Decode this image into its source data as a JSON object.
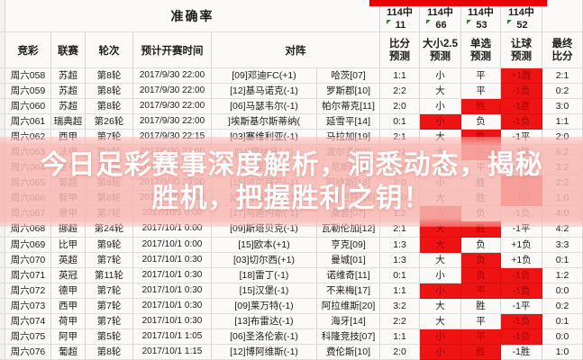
{
  "banner": {
    "line1": "今日足彩赛事深度解析，洞悉动态，揭秘",
    "line2": "胜机，把握胜利之钥！"
  },
  "header": {
    "accuracy_title": "准确率",
    "col_jingcai": "竞彩",
    "col_league": "联赛",
    "col_round": "轮次",
    "col_time": "预计开赛时间",
    "col_match": "对阵",
    "pred_cols": [
      {
        "hits": "114中",
        "count": "11",
        "label1": "比分",
        "label2": "预测"
      },
      {
        "hits": "114中",
        "count": "66",
        "label1": "大小2.5",
        "label2": "预测"
      },
      {
        "hits": "114中",
        "count": "53",
        "label1": "单选",
        "label2": "预测"
      },
      {
        "hits": "114中",
        "count": "52",
        "label1": "让球",
        "label2": "预测"
      }
    ],
    "final_col": {
      "label1": "最终",
      "label2": "比分"
    }
  },
  "colors": {
    "accent_red_bar": "#e60000",
    "hit_cell_red": "#ee1414",
    "hit_cell_text": "#9c0000",
    "overlay_pink": "#f9b7b1",
    "banner_text": "#ffffff",
    "comment_triangle_green": "#2f8a2f"
  },
  "rows": [
    {
      "id": "周六058",
      "lg": "苏超",
      "rd": "第8轮",
      "tm": "2017/9/30 22:00",
      "hm": "[09]邓迪FC(+1)",
      "aw": "哈茨[07]",
      "bf": "1:1",
      "dx": "小",
      "dan": "平",
      "rq": "+1胜",
      "fin": "2:1",
      "r": [
        "rq"
      ]
    },
    {
      "id": "周六059",
      "lg": "苏超",
      "rd": "第8轮",
      "tm": "2017/9/30 22:00",
      "hm": "[12]基马诺克(-1)",
      "aw": "罗斯郡[10]",
      "bf": "2:2",
      "dx": "大",
      "dan": "平",
      "rq": "-1负",
      "fin": "0:2",
      "r": [
        "rq"
      ]
    },
    {
      "id": "周六060",
      "lg": "苏超",
      "rd": "第8轮",
      "tm": "2017/9/30 22:00",
      "hm": "[06]马瑟韦尔(-1)",
      "aw": "帕尔蒂克[11]",
      "bf": "2:0",
      "dx": "小",
      "dan": "胜",
      "rq": "-1胜",
      "fin": "3:0",
      "r": [
        "dan",
        "rq"
      ]
    },
    {
      "id": "周六061",
      "lg": "瑞典超",
      "rd": "第26轮",
      "tm": "2017/9/30 22:00",
      "hm": "]埃斯基尔斯蒂纳(",
      "aw": "延雪平[14]",
      "bf": "0:1",
      "dx": "小",
      "dan": "负",
      "rq": "-1负",
      "fin": "1:1",
      "r": [
        "dx",
        "rq"
      ]
    },
    {
      "id": "周六062",
      "lg": "西甲",
      "rd": "第7轮",
      "tm": "2017/9/30 22:15",
      "hm": "[03]塞维利亚(-1)",
      "aw": "马拉加[19]",
      "bf": "2:1",
      "dx": "大",
      "dan": "胜",
      "rq": "-1平",
      "fin": "2:0",
      "r": [
        "dan"
      ]
    },
    {
      "id": "周六063",
      "lg": "法甲",
      "rd": "第8轮",
      "tm": "2017/9/30 23:00",
      "hm": "[04]摩纳哥(-2)",
      "aw": "波尔多[07]",
      "bf": "3:1",
      "dx": "大",
      "dan": "胜",
      "rq": "-2胜",
      "fin": "6:2",
      "r": [
        "dan"
      ]
    },
    {
      "id": "周六064",
      "lg": "法甲",
      "rd": "第8轮",
      "tm": "2017/9/30 23:00",
      "hm": "[14]里尔(-1)",
      "aw": "尼斯[10]",
      "bf": "2:2",
      "dx": "大",
      "dan": "平",
      "rq": "+1平",
      "fin": "3:2",
      "r": []
    },
    {
      "id": "周六065",
      "lg": "葡超",
      "rd": "第8轮",
      "tm": "2017/9/30 23:00",
      "hm": "[15]波尔蒂芒(-1)",
      "aw": "阿维斯[18]",
      "bf": "2:0",
      "dx": "小",
      "dan": "胜",
      "rq": "-1胜",
      "fin": "2:2",
      "r": [
        "rq"
      ]
    },
    {
      "id": "周六066",
      "lg": "智甲",
      "rd": "第8轮",
      "tm": "2017/9/30 23:30",
      "hm": "[01]科洛科洛(-1)",
      "aw": "瓦奇巴托[16]",
      "bf": "2:0",
      "dx": "大",
      "dan": "胜",
      "rq": "+1胜",
      "fin": "1:0",
      "r": [
        "rq"
      ]
    },
    {
      "id": "周六067",
      "lg": "意甲",
      "rd": "第7轮",
      "tm": "2017/10/1 0:00",
      "hm": "[17]乌迪内斯(-1)",
      "aw": "桑普[07]",
      "bf": "1:2",
      "dx": "大",
      "dan": "负",
      "rq": "-1负",
      "fin": "4:0",
      "r": [
        "dx"
      ]
    },
    {
      "id": "周六068",
      "lg": "挪超",
      "rd": "第24轮",
      "tm": "2017/10/1 0:00",
      "hm": "[09]斯塔贝克(-1)",
      "aw": "瓦勒伦加[12]",
      "bf": "2:1",
      "dx": "大",
      "dan": "胜",
      "rq": "-1平",
      "fin": "4:2",
      "r": [
        "dx",
        "dan"
      ]
    },
    {
      "id": "周六069",
      "lg": "比甲",
      "rd": "第9轮",
      "tm": "2017/10/1 0:00",
      "hm": "[15]欧本(+1)",
      "aw": "亨克[09]",
      "bf": "1:3",
      "dx": "大",
      "dan": "负",
      "rq": "+1负",
      "fin": "3:3",
      "r": [
        "dx"
      ]
    },
    {
      "id": "周六070",
      "lg": "英超",
      "rd": "第7轮",
      "tm": "2017/10/1 0:30",
      "hm": "[03]切尔西(+1)",
      "aw": "曼城[01]",
      "bf": "1:3",
      "dx": "大",
      "dan": "负",
      "rq": "+1负",
      "fin": "0:1",
      "r": [
        "dan"
      ]
    },
    {
      "id": "周六071",
      "lg": "英冠",
      "rd": "第11轮",
      "tm": "2017/10/1 0:30",
      "hm": "[18]雷丁(-1)",
      "aw": "诺维奇[11]",
      "bf": "0:1",
      "dx": "小",
      "dan": "负",
      "rq": "-1负",
      "fin": "1:2",
      "r": [
        "dan",
        "rq"
      ]
    },
    {
      "id": "周六072",
      "lg": "德甲",
      "rd": "第7轮",
      "tm": "2017/10/1 0:30",
      "hm": "[15]汉堡(-1)",
      "aw": "不来梅[17]",
      "bf": "1:1",
      "dx": "小",
      "dan": "平",
      "rq": "-1负",
      "fin": "0:0",
      "r": [
        "dx",
        "dan",
        "rq"
      ]
    },
    {
      "id": "周六073",
      "lg": "西甲",
      "rd": "第7轮",
      "tm": "2017/10/1 0:30",
      "hm": "[09]莱万特(-1)",
      "aw": "阿拉维斯[20]",
      "bf": "3:2",
      "dx": "大",
      "dan": "胜",
      "rq": "-1平",
      "fin": "0:2",
      "r": []
    },
    {
      "id": "周六074",
      "lg": "荷甲",
      "rd": "第7轮",
      "tm": "2017/10/1 0:30",
      "hm": "[13]布雷达(-1)",
      "aw": "海牙[14]",
      "bf": "2:2",
      "dx": "大",
      "dan": "平",
      "rq": "-1负",
      "fin": "0:1",
      "r": [
        "rq"
      ]
    },
    {
      "id": "周六075",
      "lg": "阿甲",
      "rd": "第5轮",
      "tm": "2017/10/1 1:05",
      "hm": "[06]圣洛伦索(-1)",
      "aw": "科隆竞技[07]",
      "bf": "1:1",
      "dx": "小",
      "dan": "平",
      "rq": "-1负",
      "fin": "0:0",
      "r": [
        "dx",
        "dan",
        "rq"
      ]
    },
    {
      "id": "周六076",
      "lg": "葡超",
      "rd": "第8轮",
      "tm": "2017/10/1 1:15",
      "hm": "[12]博阿维斯(-1)",
      "aw": "费伦斯[10]",
      "bf": "2:0",
      "dx": "小",
      "dan": "胜",
      "rq": "-1胜",
      "fin": "1:0",
      "r": [
        "dx",
        "dan"
      ]
    }
  ]
}
